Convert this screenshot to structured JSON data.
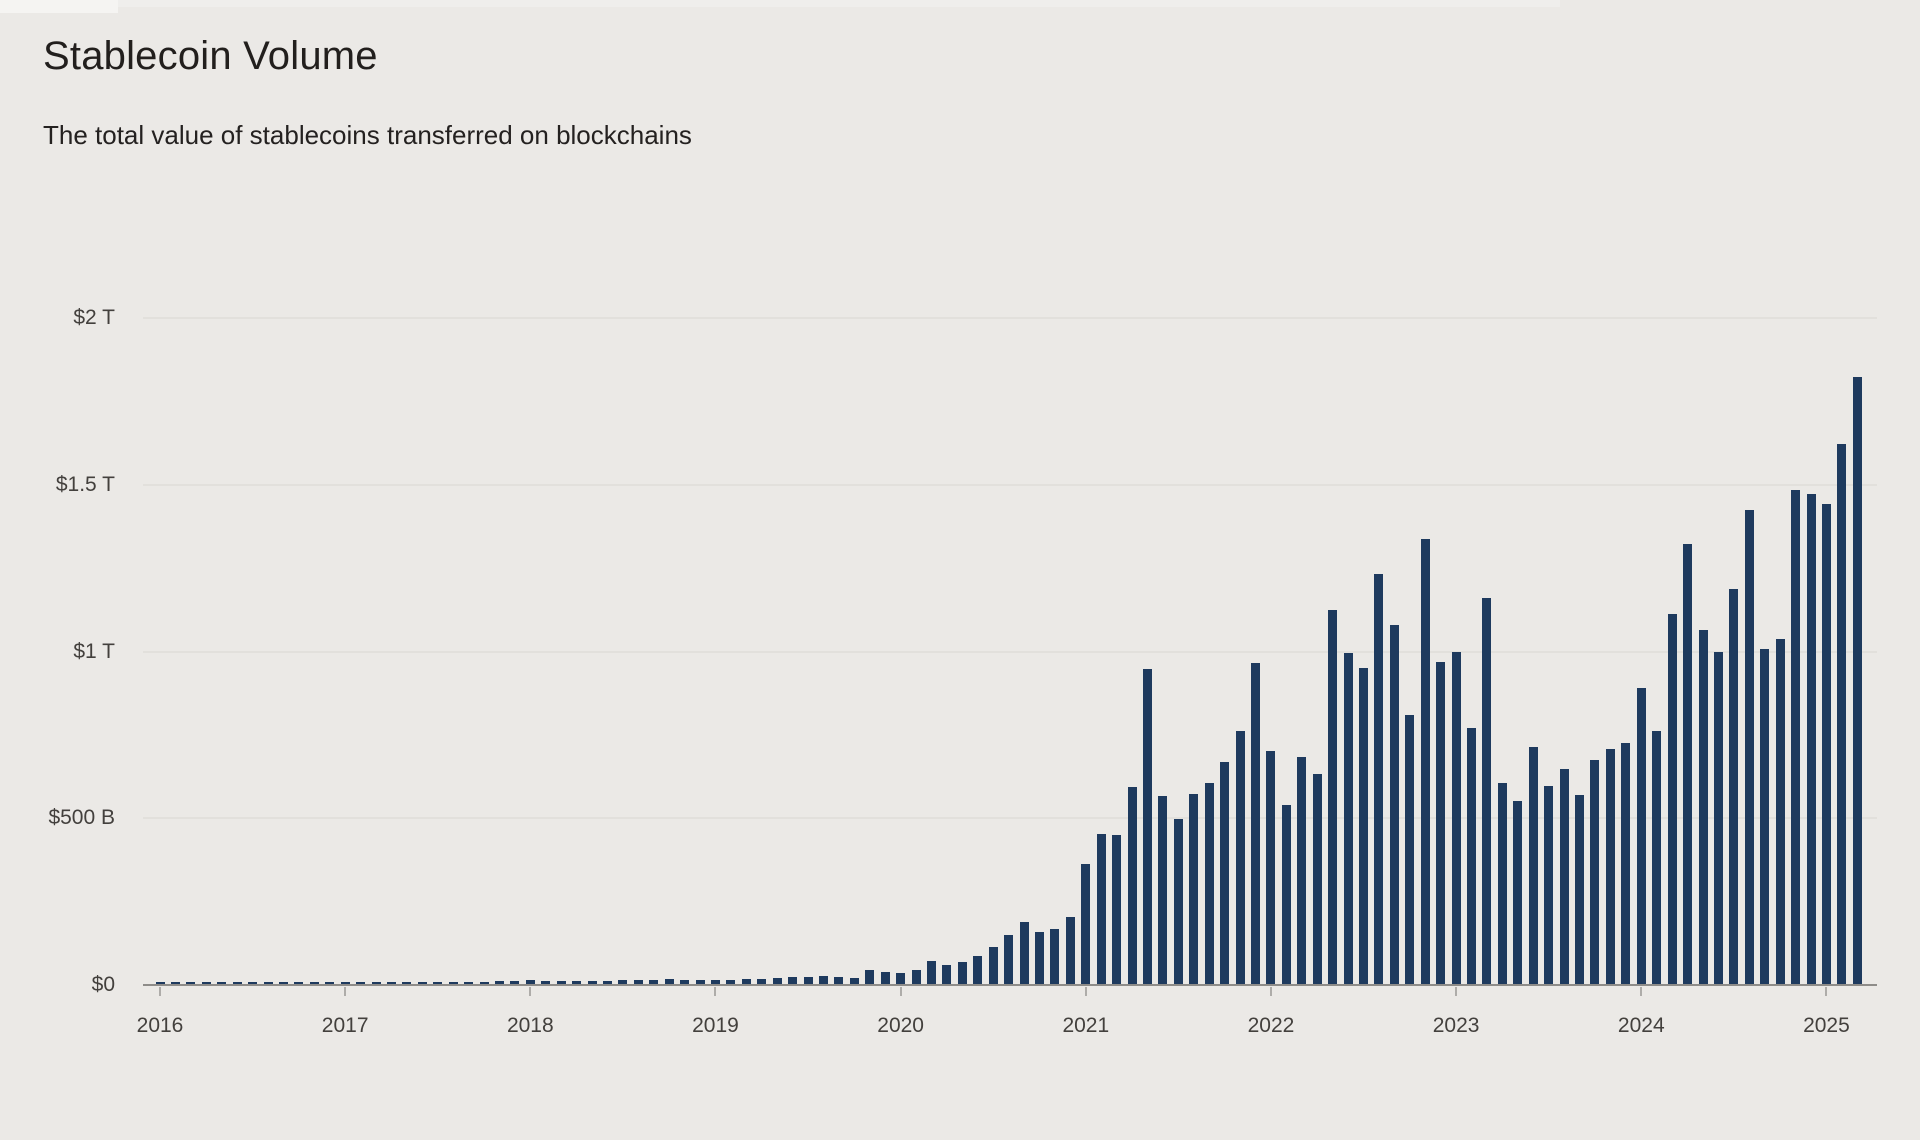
{
  "header": {
    "title": "Stablecoin Volume",
    "subtitle": "The total value of stablecoins transferred on blockchains"
  },
  "colors": {
    "background": "#ebe9e6",
    "bar": "#1e3a5e",
    "gridline": "#e2e0dc",
    "axis_line": "#8e8c89",
    "title_text": "#221f1d",
    "axis_label_text": "#43403d"
  },
  "y_axis": {
    "ticks": [
      {
        "label": "$2 T",
        "value_b": 2000
      },
      {
        "label": "$1.5 T",
        "value_b": 1500
      },
      {
        "label": "$1 T",
        "value_b": 1000
      },
      {
        "label": "$500 B",
        "value_b": 500
      },
      {
        "label": "$0",
        "value_b": 0
      }
    ]
  },
  "x_axis": {
    "years": [
      "2016",
      "2017",
      "2018",
      "2019",
      "2020",
      "2021",
      "2022",
      "2023",
      "2024",
      "2025"
    ]
  },
  "chart_data": {
    "type": "bar",
    "title": "Stablecoin Volume",
    "subtitle": "The total value of stablecoins transferred on blockchains",
    "unit": "USD billions per month",
    "frequency": "monthly",
    "x_start": "2016-01",
    "x_end": "2025-03",
    "ylim_b": [
      0,
      2000
    ],
    "grid": "horizontal",
    "legend": "none",
    "values_b": [
      1,
      1,
      1,
      1,
      1,
      1,
      1,
      2,
      2,
      2,
      2,
      2,
      3,
      3,
      4,
      4,
      5,
      6,
      6,
      7,
      7,
      7,
      8,
      10,
      12,
      10,
      10,
      9,
      10,
      10,
      11,
      12,
      13,
      14,
      13,
      12,
      11,
      12,
      14,
      16,
      18,
      20,
      22,
      24,
      20,
      17,
      43,
      35,
      33,
      43,
      68,
      58,
      65,
      84,
      110,
      146,
      186,
      156,
      166,
      201,
      360,
      450,
      448,
      590,
      945,
      564,
      496,
      571,
      604,
      667,
      758,
      963,
      700,
      536,
      680,
      630,
      1120,
      992,
      948,
      1230,
      1078,
      808,
      1335,
      965,
      997,
      768,
      1157,
      604,
      549,
      710,
      595,
      645,
      568,
      672,
      706,
      723,
      888,
      760,
      1110,
      1318,
      1062,
      996,
      1185,
      1422,
      1005,
      1035,
      1480,
      1468,
      1440,
      1618,
      1820
    ]
  }
}
